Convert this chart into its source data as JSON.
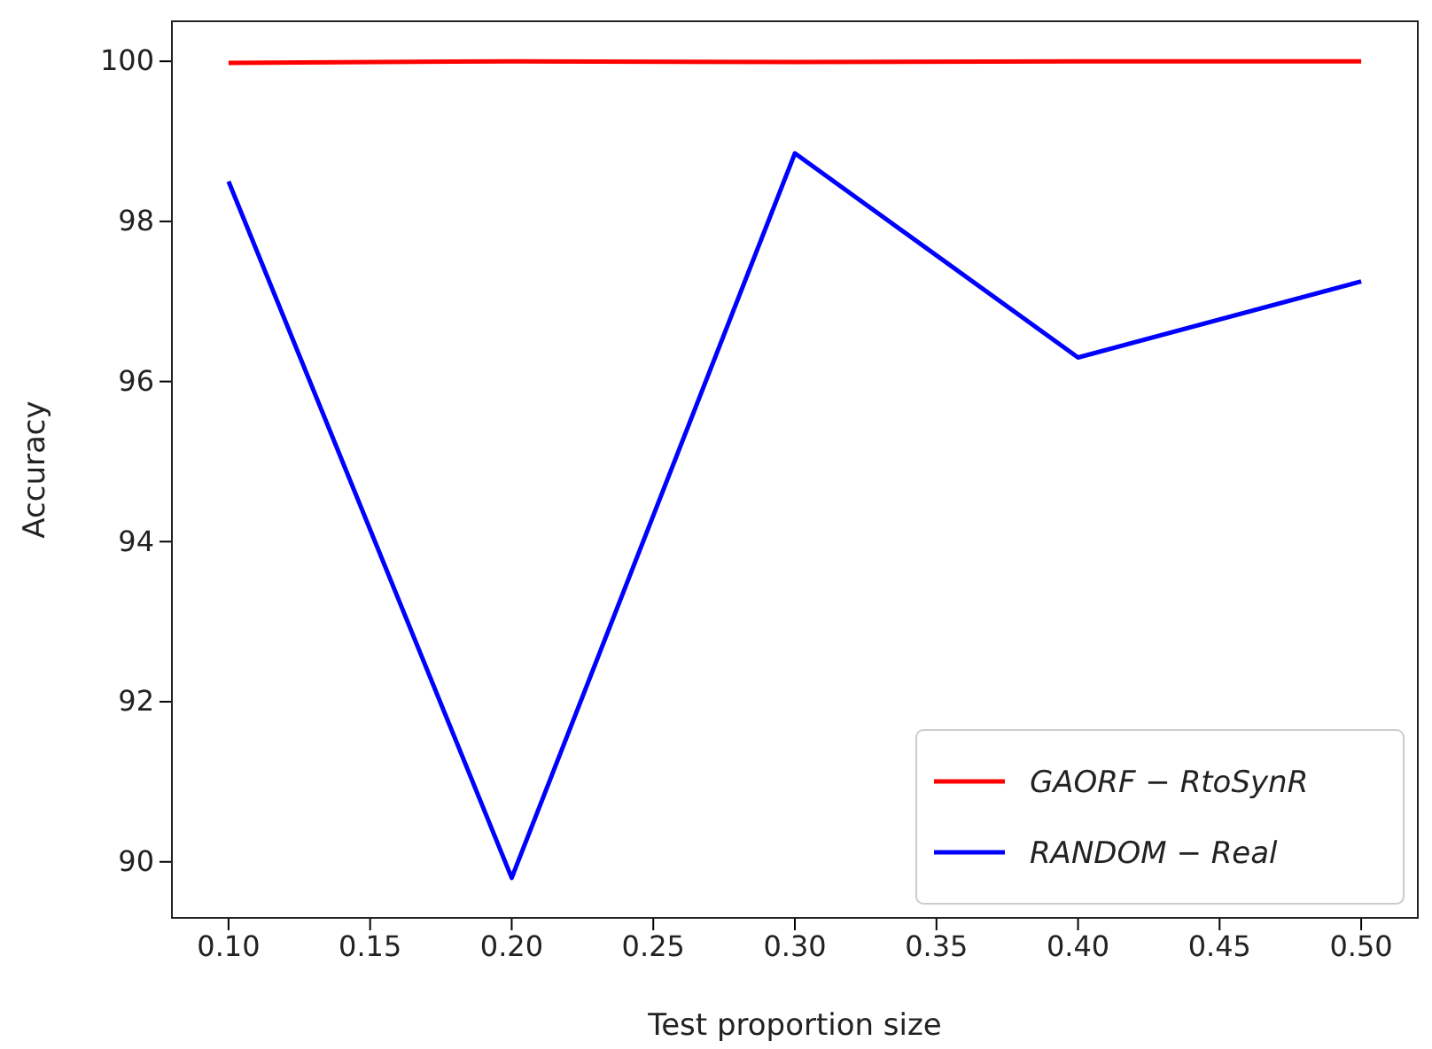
{
  "chart_data": {
    "type": "line",
    "xlabel": "Test proportion size",
    "ylabel": "Accuracy",
    "x": [
      0.1,
      0.2,
      0.3,
      0.4,
      0.5
    ],
    "series": [
      {
        "name": "GAORF − RtoSynR",
        "color": "#ff0000",
        "values": [
          99.98,
          100.0,
          99.99,
          100.0,
          100.0
        ]
      },
      {
        "name": "RANDOM − Real",
        "color": "#0000ff",
        "values": [
          98.5,
          89.8,
          98.85,
          96.3,
          97.25
        ]
      }
    ],
    "xlim": [
      0.08,
      0.52
    ],
    "xticks": [
      {
        "value": 0.1,
        "label": "0.10"
      },
      {
        "value": 0.15,
        "label": "0.15"
      },
      {
        "value": 0.2,
        "label": "0.20"
      },
      {
        "value": 0.25,
        "label": "0.25"
      },
      {
        "value": 0.3,
        "label": "0.30"
      },
      {
        "value": 0.35,
        "label": "0.35"
      },
      {
        "value": 0.4,
        "label": "0.40"
      },
      {
        "value": 0.45,
        "label": "0.45"
      },
      {
        "value": 0.5,
        "label": "0.50"
      }
    ],
    "ylim": [
      89.3,
      100.5
    ],
    "yticks": [
      90,
      92,
      94,
      96,
      98,
      100
    ],
    "legend": "bottom right",
    "grid": false,
    "marker": "none",
    "line_style": "solid"
  }
}
